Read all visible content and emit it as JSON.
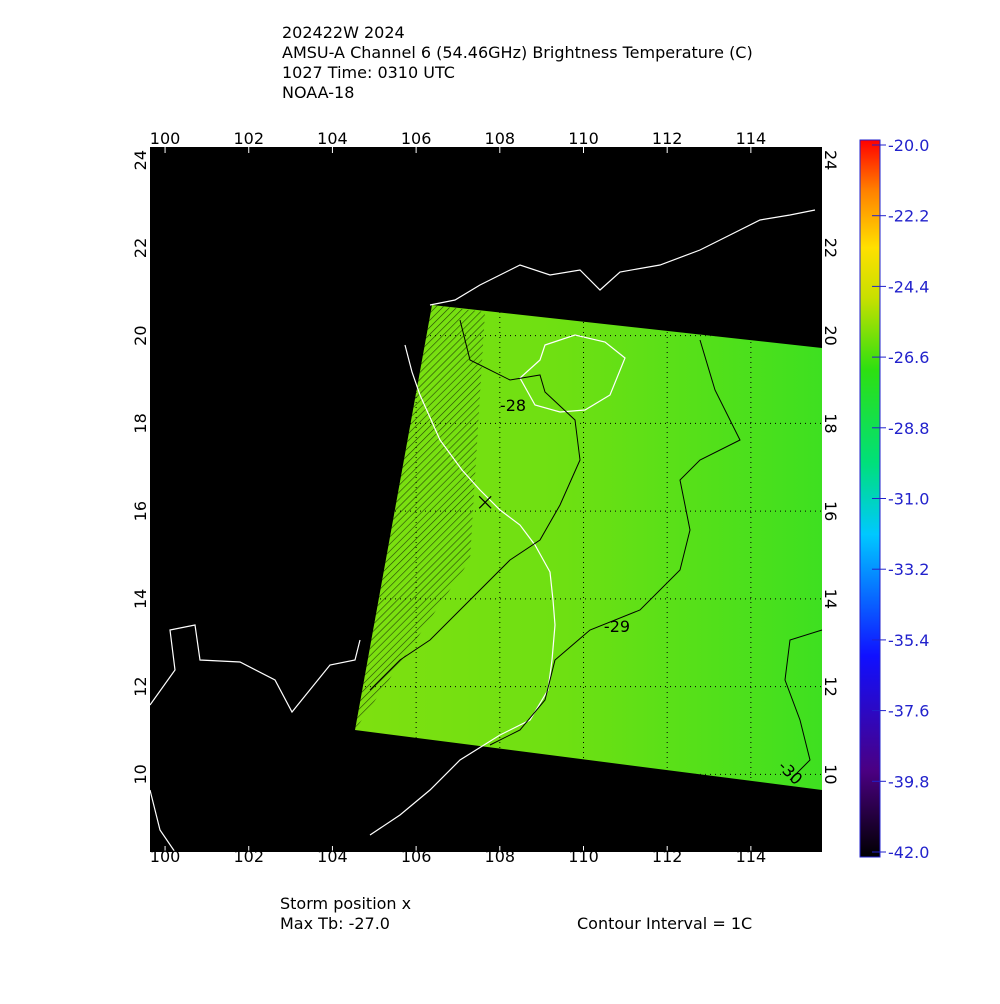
{
  "chart_data": {
    "type": "map",
    "header": [
      "202422W 2024",
      "AMSU-A Channel 6 (54.46GHz) Brightness Temperature (C)",
      "1027 Time: 0310 UTC",
      "NOAA-18"
    ],
    "xticks": [
      100,
      102,
      104,
      106,
      108,
      110,
      112,
      114
    ],
    "yticks": [
      24,
      22,
      20,
      18,
      16,
      14,
      12,
      10
    ],
    "xlim": [
      99.64,
      115.7
    ],
    "ylim": [
      8.23,
      24.3
    ],
    "colorbar": {
      "lim": [
        -42,
        -20
      ],
      "ticks": [
        {
          "value": -20,
          "label": "-20.0"
        },
        -22.2,
        -24.4,
        -26.6,
        -28.8,
        {
          "value": -31,
          "label": "-31.0"
        },
        -33.2,
        -35.4,
        -37.6,
        -39.8,
        {
          "value": -42,
          "label": "-42.0"
        }
      ]
    },
    "contour_labels": [
      "-28",
      "-29",
      "-30"
    ],
    "storm_position": {
      "lon": 107.65,
      "lat": 16.2
    },
    "footer": {
      "storm": "Storm position x",
      "max_tb": "Max Tb: -27.0",
      "interval": "Contour Interval = 1C"
    }
  }
}
